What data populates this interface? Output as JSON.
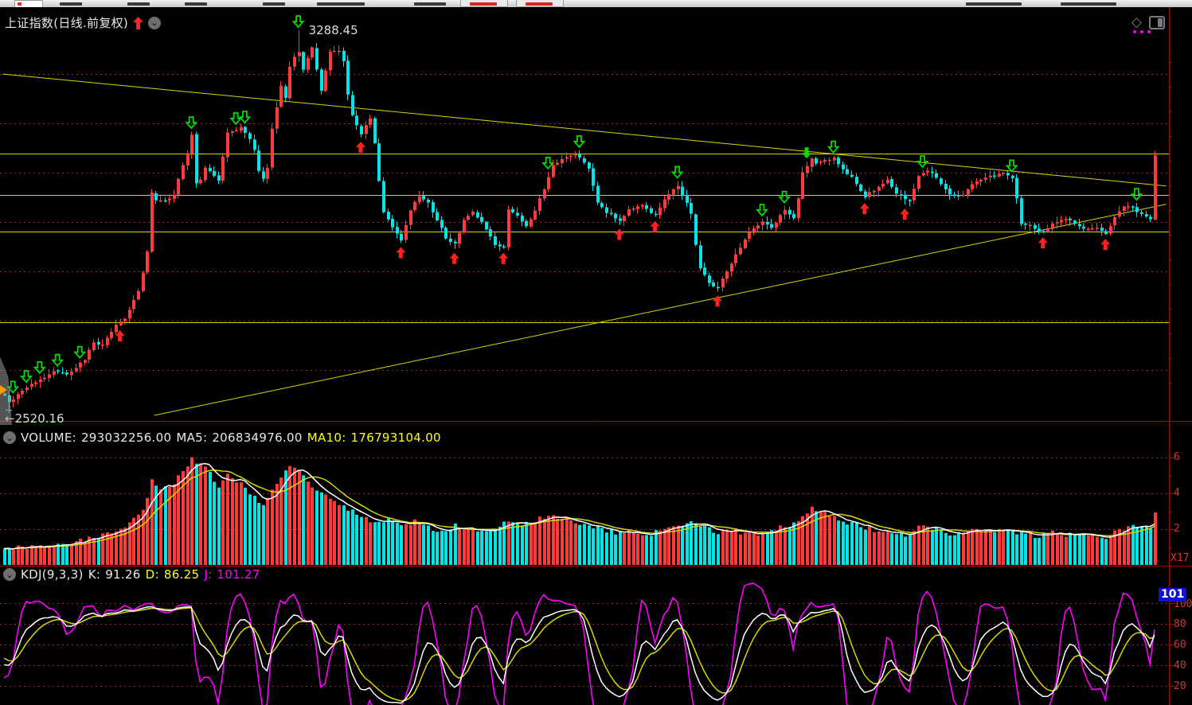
{
  "header": {
    "title": "上证指数(日线.前复权)",
    "trend_icon": "up-arrow-red",
    "collapse_icon": "chevron-down"
  },
  "price_labels": {
    "high": "3288.45",
    "low": "←2520.16"
  },
  "volume_header": {
    "label": "VOLUME:",
    "value": "293032256.00",
    "ma5_label": "MA5:",
    "ma5": "206834976.00",
    "ma10_label": "MA10:",
    "ma10": "176793104.00"
  },
  "kdj_header": {
    "label": "KDJ(9,3,3)",
    "k_label": "K:",
    "k": "91.26",
    "d_label": "D:",
    "d": "86.25",
    "j_label": "J:",
    "j": "101.27"
  },
  "colors": {
    "up": "#ff3b3b",
    "down": "#00e6e6",
    "line_yellow": "#d8d800",
    "grid_dot": "#9c2c2c",
    "axis": "#aa0000",
    "text_white": "#e8e8e8",
    "text_yellow": "#ffff00",
    "text_magenta": "#ff00ff",
    "badge_bg": "#1010d8",
    "kdj_k": "#ffffff",
    "kdj_d": "#d8d800",
    "kdj_j": "#ff00ff",
    "ma5": "#ffffff",
    "ma10": "#d8d800",
    "signal_buy": "#ff2020",
    "signal_sell": "#00dd00"
  },
  "chart_data": [
    {
      "type": "candlestick",
      "title": "上证指数(日线.前复权)",
      "n_candles": 259,
      "y_axis": {
        "gridline_prices": [
          3200,
          3100,
          3000,
          2900,
          2800,
          2700,
          2600
        ],
        "price_at_y84": 3200,
        "price_at_y456": 2600
      },
      "high_point": {
        "i": 66,
        "price": 3288.45
      },
      "low_point": {
        "i": 1,
        "price": 2520.16
      },
      "horizontal_line_prices": [
        3039,
        2955,
        2881,
        2697
      ],
      "trendlines": [
        {
          "from_i": 0,
          "from_p": 3200,
          "to_i": 261,
          "to_p": 2973
        },
        {
          "from_i": 34,
          "from_p": 2508,
          "to_i": 261,
          "to_p": 2936
        }
      ],
      "close_anchors": [
        [
          0,
          2548
        ],
        [
          1,
          2535
        ],
        [
          3,
          2549
        ],
        [
          5,
          2566
        ],
        [
          8,
          2580
        ],
        [
          11,
          2598
        ],
        [
          14,
          2592
        ],
        [
          16,
          2603
        ],
        [
          18,
          2622
        ],
        [
          20,
          2656
        ],
        [
          22,
          2650
        ],
        [
          25,
          2692
        ],
        [
          27,
          2705
        ],
        [
          28,
          2721
        ],
        [
          30,
          2760
        ],
        [
          32,
          2838
        ],
        [
          33,
          2960
        ],
        [
          34,
          2945
        ],
        [
          36,
          2942
        ],
        [
          38,
          2956
        ],
        [
          40,
          3015
        ],
        [
          41,
          3040
        ],
        [
          42,
          3075
        ],
        [
          43,
          2980
        ],
        [
          44,
          2985
        ],
        [
          45,
          3008
        ],
        [
          47,
          2995
        ],
        [
          48,
          2985
        ],
        [
          50,
          3080
        ],
        [
          53,
          3092
        ],
        [
          55,
          3070
        ],
        [
          56,
          3045
        ],
        [
          57,
          3005
        ],
        [
          58,
          2987
        ],
        [
          59,
          3010
        ],
        [
          60,
          3089
        ],
        [
          62,
          3178
        ],
        [
          63,
          3152
        ],
        [
          64,
          3216
        ],
        [
          65,
          3235
        ],
        [
          66,
          3245
        ],
        [
          67,
          3208
        ],
        [
          69,
          3255
        ],
        [
          71,
          3165
        ],
        [
          73,
          3245
        ],
        [
          75,
          3248
        ],
        [
          76,
          3225
        ],
        [
          77,
          3160
        ],
        [
          78,
          3115
        ],
        [
          80,
          3078
        ],
        [
          82,
          3112
        ],
        [
          83,
          3060
        ],
        [
          84,
          2984
        ],
        [
          85,
          2922
        ],
        [
          86,
          2905
        ],
        [
          87,
          2890
        ],
        [
          89,
          2862
        ],
        [
          91,
          2925
        ],
        [
          93,
          2952
        ],
        [
          95,
          2938
        ],
        [
          97,
          2905
        ],
        [
          98,
          2888
        ],
        [
          99,
          2868
        ],
        [
          101,
          2855
        ],
        [
          103,
          2905
        ],
        [
          105,
          2920
        ],
        [
          107,
          2900
        ],
        [
          109,
          2872
        ],
        [
          110,
          2855
        ],
        [
          112,
          2848
        ],
        [
          113,
          2925
        ],
        [
          115,
          2912
        ],
        [
          117,
          2890
        ],
        [
          119,
          2925
        ],
        [
          121,
          2968
        ],
        [
          122,
          2992
        ],
        [
          123,
          3015
        ],
        [
          125,
          3028
        ],
        [
          126,
          3030
        ],
        [
          128,
          3038
        ],
        [
          129,
          3032
        ],
        [
          131,
          3008
        ],
        [
          132,
          2975
        ],
        [
          133,
          2938
        ],
        [
          135,
          2920
        ],
        [
          136,
          2915
        ],
        [
          138,
          2902
        ],
        [
          140,
          2925
        ],
        [
          142,
          2932
        ],
        [
          143,
          2935
        ],
        [
          145,
          2920
        ],
        [
          146,
          2912
        ],
        [
          148,
          2945
        ],
        [
          150,
          2965
        ],
        [
          151,
          2972
        ],
        [
          153,
          2938
        ],
        [
          154,
          2915
        ],
        [
          155,
          2855
        ],
        [
          156,
          2808
        ],
        [
          158,
          2775
        ],
        [
          160,
          2768
        ],
        [
          162,
          2798
        ],
        [
          163,
          2815
        ],
        [
          165,
          2850
        ],
        [
          167,
          2878
        ],
        [
          169,
          2895
        ],
        [
          170,
          2902
        ],
        [
          172,
          2888
        ],
        [
          174,
          2912
        ],
        [
          175,
          2925
        ],
        [
          177,
          2908
        ],
        [
          178,
          2950
        ],
        [
          179,
          3002
        ],
        [
          181,
          3028
        ],
        [
          182,
          3020
        ],
        [
          184,
          3025
        ],
        [
          186,
          3030
        ],
        [
          188,
          3008
        ],
        [
          190,
          2990
        ],
        [
          191,
          2975
        ],
        [
          193,
          2952
        ],
        [
          195,
          2965
        ],
        [
          197,
          2978
        ],
        [
          198,
          2985
        ],
        [
          200,
          2958
        ],
        [
          202,
          2948
        ],
        [
          203,
          2945
        ],
        [
          205,
          2992
        ],
        [
          207,
          3002
        ],
        [
          208,
          3000
        ],
        [
          210,
          2975
        ],
        [
          212,
          2958
        ],
        [
          214,
          2952
        ],
        [
          215,
          2955
        ],
        [
          217,
          2975
        ],
        [
          219,
          2985
        ],
        [
          221,
          2992
        ],
        [
          222,
          2995
        ],
        [
          224,
          3000
        ],
        [
          226,
          2988
        ],
        [
          227,
          2950
        ],
        [
          228,
          2895
        ],
        [
          230,
          2892
        ],
        [
          231,
          2888
        ],
        [
          233,
          2878
        ],
        [
          235,
          2895
        ],
        [
          237,
          2905
        ],
        [
          238,
          2908
        ],
        [
          240,
          2895
        ],
        [
          242,
          2885
        ],
        [
          244,
          2888
        ],
        [
          245,
          2890
        ],
        [
          247,
          2878
        ],
        [
          249,
          2908
        ],
        [
          251,
          2932
        ],
        [
          253,
          2928
        ],
        [
          254,
          2920
        ],
        [
          256,
          2912
        ],
        [
          257,
          2905
        ],
        [
          258,
          3035
        ]
      ],
      "signals": {
        "buy": [
          26,
          80,
          89,
          101,
          112,
          138,
          146,
          160,
          193,
          202,
          233,
          247
        ],
        "sell": [
          2,
          5,
          8,
          12,
          17,
          42,
          52,
          54,
          66,
          122,
          129,
          151,
          170,
          175,
          186,
          206,
          226,
          254
        ],
        "sell_solid": [
          180
        ]
      }
    },
    {
      "type": "bar",
      "name": "VOLUME",
      "unit": 100000000,
      "current": 293032256.0,
      "ma5": 206834976.0,
      "ma10": 176793104.0,
      "gridline_values": [
        6,
        4,
        2
      ],
      "axis_labels": [
        "6",
        "4",
        "2"
      ],
      "multiplier_label": "X17",
      "volume_anchors": [
        [
          0,
          0.9
        ],
        [
          5,
          1.0
        ],
        [
          10,
          1.1
        ],
        [
          15,
          1.2
        ],
        [
          20,
          1.5
        ],
        [
          25,
          1.9
        ],
        [
          28,
          2.3
        ],
        [
          30,
          2.8
        ],
        [
          32,
          3.6
        ],
        [
          33,
          4.8
        ],
        [
          35,
          4.2
        ],
        [
          38,
          4.6
        ],
        [
          40,
          5.2
        ],
        [
          42,
          5.9
        ],
        [
          44,
          5.6
        ],
        [
          46,
          5.1
        ],
        [
          48,
          4.4
        ],
        [
          50,
          5.0
        ],
        [
          53,
          4.6
        ],
        [
          56,
          3.8
        ],
        [
          58,
          3.3
        ],
        [
          60,
          4.2
        ],
        [
          62,
          5.0
        ],
        [
          64,
          5.6
        ],
        [
          66,
          5.3
        ],
        [
          68,
          4.6
        ],
        [
          70,
          4.2
        ],
        [
          72,
          3.8
        ],
        [
          75,
          3.4
        ],
        [
          78,
          3.0
        ],
        [
          80,
          2.7
        ],
        [
          83,
          2.4
        ],
        [
          86,
          2.6
        ],
        [
          89,
          2.2
        ],
        [
          92,
          2.4
        ],
        [
          95,
          2.1
        ],
        [
          98,
          1.9
        ],
        [
          101,
          2.2
        ],
        [
          104,
          2.0
        ],
        [
          107,
          1.9
        ],
        [
          110,
          2.1
        ],
        [
          113,
          2.4
        ],
        [
          116,
          2.2
        ],
        [
          119,
          2.5
        ],
        [
          122,
          2.8
        ],
        [
          125,
          2.6
        ],
        [
          128,
          2.4
        ],
        [
          131,
          2.2
        ],
        [
          134,
          2.0
        ],
        [
          137,
          1.8
        ],
        [
          140,
          1.9
        ],
        [
          143,
          1.7
        ],
        [
          146,
          1.8
        ],
        [
          149,
          2.0
        ],
        [
          152,
          2.2
        ],
        [
          155,
          2.4
        ],
        [
          158,
          2.0
        ],
        [
          161,
          1.8
        ],
        [
          164,
          1.9
        ],
        [
          167,
          1.7
        ],
        [
          170,
          1.8
        ],
        [
          173,
          2.0
        ],
        [
          176,
          2.2
        ],
        [
          179,
          2.8
        ],
        [
          181,
          3.2
        ],
        [
          184,
          2.9
        ],
        [
          187,
          2.6
        ],
        [
          190,
          2.3
        ],
        [
          193,
          2.1
        ],
        [
          196,
          1.9
        ],
        [
          199,
          1.8
        ],
        [
          202,
          1.7
        ],
        [
          205,
          2.1
        ],
        [
          208,
          2.0
        ],
        [
          211,
          1.8
        ],
        [
          214,
          1.7
        ],
        [
          217,
          1.9
        ],
        [
          220,
          1.8
        ],
        [
          223,
          2.0
        ],
        [
          226,
          1.9
        ],
        [
          229,
          1.7
        ],
        [
          232,
          1.6
        ],
        [
          235,
          1.8
        ],
        [
          238,
          1.7
        ],
        [
          241,
          1.6
        ],
        [
          244,
          1.7
        ],
        [
          247,
          1.6
        ],
        [
          250,
          1.9
        ],
        [
          253,
          2.1
        ],
        [
          256,
          2.2
        ],
        [
          257,
          2.0
        ],
        [
          258,
          2.93
        ]
      ]
    },
    {
      "type": "line",
      "name": "KDJ",
      "params": "(9,3,3)",
      "k": 91.26,
      "d": 86.25,
      "j": 101.27,
      "computed_from": "candlestick OHLC via KDJ(9,3,3) formula",
      "gridline_values": [
        100,
        80,
        60,
        40,
        20
      ],
      "axis_labels": [
        "100",
        "80",
        "60",
        "40",
        "20"
      ],
      "badge": "101"
    }
  ]
}
